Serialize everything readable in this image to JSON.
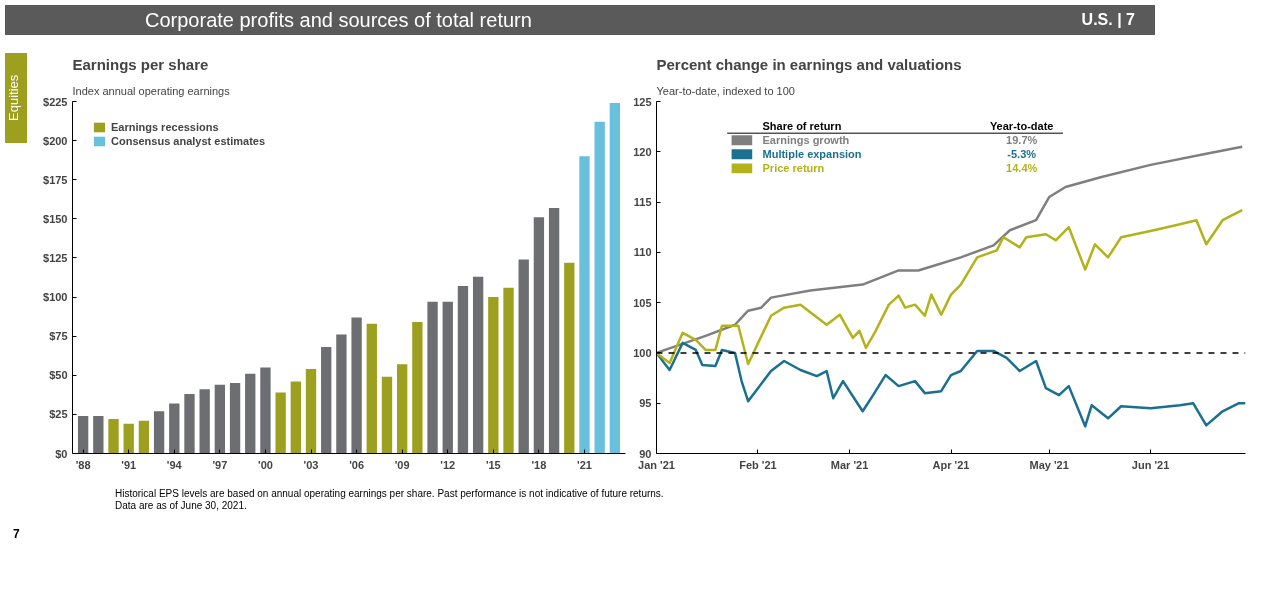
{
  "chart_data": [
    {
      "type": "bar",
      "title": "Earnings per share",
      "subtitle": "Index annual operating earnings",
      "annotations": [
        "Corporate profits and sources of total return",
        "U.S. | 7",
        "Equities"
      ],
      "categories": [
        "'88",
        null,
        null,
        "'91",
        null,
        null,
        "'94",
        null,
        null,
        "'97",
        null,
        null,
        "'00",
        null,
        null,
        "'03",
        null,
        null,
        "'06",
        null,
        null,
        "'09",
        null,
        null,
        "'12",
        null,
        null,
        "'15",
        null,
        null,
        "'18",
        null,
        null,
        "'21",
        null,
        null
      ],
      "series": [
        {
          "color": "#6d6e71",
          "values": [
            24,
            24,
            null,
            null,
            null,
            27,
            32,
            38,
            41,
            44,
            45,
            51,
            55,
            null,
            null,
            null,
            68,
            76,
            87,
            null,
            null,
            null,
            null,
            97,
            97,
            107,
            113,
            null,
            null,
            124,
            151,
            157,
            null,
            null,
            null,
            null
          ]
        },
        {
          "name": "Consensus analyst estimates",
          "color": "#69c0dc",
          "values": [
            null,
            null,
            null,
            null,
            null,
            null,
            null,
            null,
            null,
            null,
            null,
            null,
            null,
            null,
            null,
            null,
            null,
            null,
            null,
            null,
            null,
            null,
            null,
            null,
            null,
            null,
            null,
            null,
            null,
            null,
            null,
            null,
            null,
            190,
            212,
            224
          ]
        },
        {
          "name": "Earnings recessions",
          "color": "#9d9f1e",
          "values": [
            null,
            null,
            22,
            19,
            21,
            null,
            null,
            null,
            null,
            null,
            null,
            null,
            null,
            39,
            46,
            54,
            null,
            null,
            null,
            83,
            49,
            57,
            84,
            null,
            null,
            null,
            null,
            100,
            106,
            null,
            null,
            null,
            122,
            null,
            null,
            null
          ]
        }
      ],
      "ylim": [
        0,
        225
      ],
      "yticks": [
        {
          "value": 0,
          "label": "$0"
        },
        {
          "value": 25,
          "label": "$25"
        },
        {
          "value": 50,
          "label": "$50"
        },
        {
          "value": 75,
          "label": "$75"
        },
        {
          "value": 100,
          "label": "$100"
        },
        {
          "value": 125,
          "label": "$125"
        },
        {
          "value": 150,
          "label": "$150"
        },
        {
          "value": 175,
          "label": "$175"
        },
        {
          "value": 200,
          "label": "$200"
        },
        {
          "value": 225,
          "label": "$225"
        }
      ],
      "grid": false,
      "legend": "top left"
    },
    {
      "type": "line",
      "title": "Percent change in earnings and valuations",
      "subtitle": "Year-to-date, indexed to 100",
      "legend_title": "Share of return",
      "annotations": [
        "Year-to-date",
        "19.7%",
        "-5.3%",
        "14.4%",
        "Historical EPS levels are based on annual operating earnings per share. Past performance is not indicative of future returns.",
        "Data are as of June 30, 2021.",
        "7"
      ],
      "series": [
        {
          "name": "Earnings growth",
          "color": "#7f7f7f",
          "x": [
            "2021-01-01",
            "2021-01-16",
            "2021-01-25",
            "2021-01-29",
            "2021-02-02",
            "2021-02-05",
            "2021-02-17",
            "2021-03-05",
            "2021-03-16",
            "2021-03-22",
            "2021-03-27",
            "2021-04-04",
            "2021-04-14",
            "2021-04-19",
            "2021-04-27",
            "2021-05-01",
            "2021-05-06",
            "2021-05-17",
            "2021-06-01",
            "2021-06-18",
            "2021-06-29"
          ],
          "values": [
            100,
            101.7,
            102.8,
            104.2,
            104.5,
            105.5,
            106.2,
            106.8,
            108.2,
            108.2,
            108.7,
            109.5,
            110.7,
            112.2,
            113.2,
            115.5,
            116.5,
            117.5,
            118.7,
            119.8,
            120.5
          ]
        },
        {
          "name": "Multiple expansion",
          "color": "#1b6f8f",
          "x": [
            "2021-01-01",
            "2021-01-05",
            "2021-01-09",
            "2021-01-13",
            "2021-01-15",
            "2021-01-19",
            "2021-01-21",
            "2021-01-25",
            "2021-01-27",
            "2021-01-29",
            "2021-02-01",
            "2021-02-05",
            "2021-02-09",
            "2021-02-14",
            "2021-02-19",
            "2021-02-22",
            "2021-02-24",
            "2021-02-27",
            "2021-03-05",
            "2021-03-08",
            "2021-03-12",
            "2021-03-16",
            "2021-03-21",
            "2021-03-24",
            "2021-03-29",
            "2021-04-01",
            "2021-04-04",
            "2021-04-09",
            "2021-04-14",
            "2021-04-18",
            "2021-04-22",
            "2021-04-27",
            "2021-04-30",
            "2021-05-04",
            "2021-05-07",
            "2021-05-12",
            "2021-05-14",
            "2021-05-19",
            "2021-05-23",
            "2021-06-01",
            "2021-06-10",
            "2021-06-14",
            "2021-06-18",
            "2021-06-23",
            "2021-06-28",
            "2021-06-30"
          ],
          "values": [
            100,
            98.3,
            101,
            100.3,
            98.8,
            98.7,
            100.3,
            100,
            97.2,
            95.2,
            96.5,
            98.2,
            99.2,
            98.3,
            97.7,
            98.2,
            95.5,
            97.2,
            94.2,
            95.7,
            97.8,
            96.7,
            97.2,
            96,
            96.2,
            97.8,
            98.2,
            100.2,
            100.2,
            99.5,
            98.2,
            99.2,
            96.5,
            95.8,
            96.7,
            92.7,
            94.8,
            93.5,
            94.7,
            94.5,
            94.8,
            95,
            92.8,
            94.2,
            95,
            95
          ]
        },
        {
          "name": "Price return",
          "color": "#b3b21a",
          "x": [
            "2021-01-01",
            "2021-01-05",
            "2021-01-09",
            "2021-01-13",
            "2021-01-16",
            "2021-01-19",
            "2021-01-21",
            "2021-01-26",
            "2021-01-29",
            "2021-02-05",
            "2021-02-09",
            "2021-02-14",
            "2021-02-22",
            "2021-02-26",
            "2021-03-02",
            "2021-03-04",
            "2021-03-06",
            "2021-03-09",
            "2021-03-13",
            "2021-03-16",
            "2021-03-18",
            "2021-03-21",
            "2021-03-24",
            "2021-03-26",
            "2021-03-29",
            "2021-04-01",
            "2021-04-04",
            "2021-04-09",
            "2021-04-15",
            "2021-04-17",
            "2021-04-22",
            "2021-04-24",
            "2021-04-30",
            "2021-05-03",
            "2021-05-07",
            "2021-05-12",
            "2021-05-15",
            "2021-05-19",
            "2021-05-23",
            "2021-06-02",
            "2021-06-10",
            "2021-06-15",
            "2021-06-18",
            "2021-06-23",
            "2021-06-29"
          ],
          "values": [
            100,
            99,
            102,
            101.3,
            100.3,
            100.3,
            102.7,
            102.7,
            98.9,
            103.7,
            104.5,
            104.8,
            102.8,
            103.8,
            101.5,
            102.2,
            100.5,
            102.2,
            104.8,
            105.7,
            104.5,
            104.8,
            103.7,
            105.8,
            103.8,
            105.8,
            106.8,
            109.5,
            110.2,
            111.5,
            110.5,
            111.5,
            111.8,
            111.2,
            112.5,
            108.3,
            110.8,
            109.5,
            111.5,
            112.2,
            112.8,
            113.2,
            110.8,
            113.2,
            114.2
          ]
        }
      ],
      "xlim": [
        "2021-01-01",
        "2021-06-30"
      ],
      "xticks": [
        {
          "value": "2021-01-01",
          "label": "Jan '21"
        },
        {
          "value": "2021-02-01",
          "label": "Feb '21"
        },
        {
          "value": "2021-03-01",
          "label": "Mar '21"
        },
        {
          "value": "2021-04-01",
          "label": "Apr '21"
        },
        {
          "value": "2021-05-01",
          "label": "May '21"
        },
        {
          "value": "2021-06-01",
          "label": "Jun '21"
        }
      ],
      "ylim": [
        90,
        125
      ],
      "yticks": [
        90,
        95,
        100,
        105,
        110,
        115,
        120,
        125
      ],
      "ref_lines": [
        {
          "axis": "y",
          "value": 100,
          "line_style": "dashed",
          "color": "#000000"
        }
      ],
      "grid": false,
      "legend": "top",
      "line_style": "solid"
    }
  ]
}
